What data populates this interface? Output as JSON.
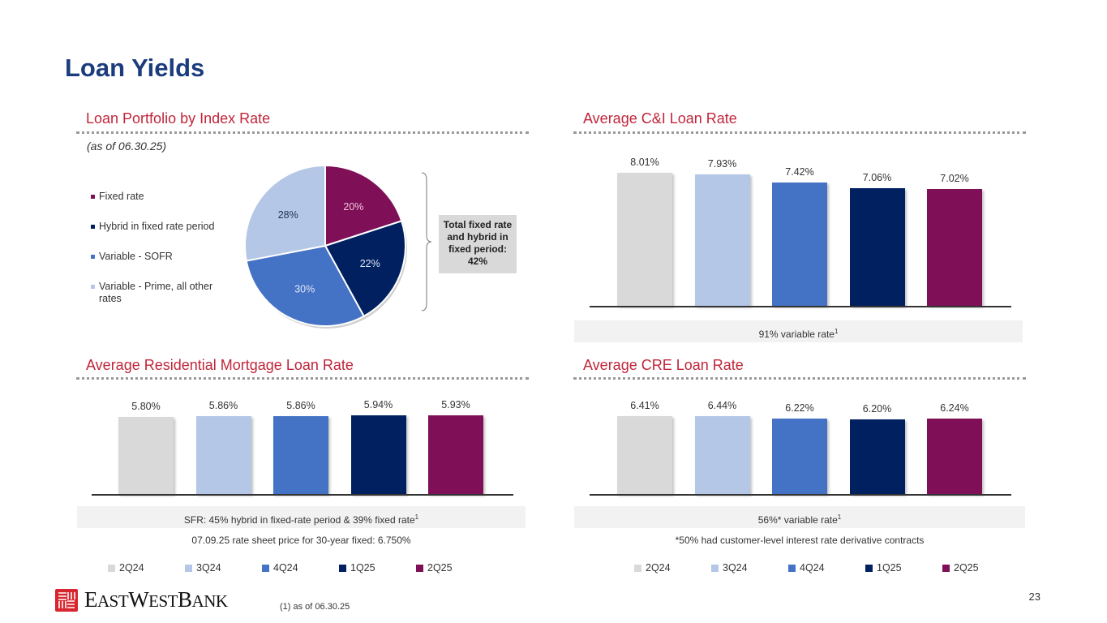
{
  "title": "Loan Yields",
  "page_number": "23",
  "footnote": "(1)   as of 06.30.25",
  "logo_text": "EASTWESTBANK",
  "colors": {
    "2Q24": "#D9D9D9",
    "3Q24": "#B4C7E7",
    "4Q24": "#4472C4",
    "1Q25": "#002060",
    "2Q25": "#7F1057"
  },
  "legend": [
    "2Q24",
    "3Q24",
    "4Q24",
    "1Q25",
    "2Q25"
  ],
  "chart_data": [
    {
      "id": "pie",
      "type": "pie",
      "title": "Loan Portfolio by Index Rate",
      "subtitle": "(as of 06.30.25)",
      "slices": [
        {
          "name": "Fixed rate",
          "value": 20,
          "label": "20%",
          "color": "#7F1057"
        },
        {
          "name": "Hybrid in fixed rate period",
          "value": 22,
          "label": "22%",
          "color": "#002060"
        },
        {
          "name": "Variable - SOFR",
          "value": 30,
          "label": "30%",
          "color": "#4472C4"
        },
        {
          "name": "Variable - Prime, all other rates",
          "value": 28,
          "label": "28%",
          "color": "#B4C7E7"
        }
      ],
      "legend_position": "left",
      "annotation": "Total fixed rate and hybrid in fixed period: 42%"
    },
    {
      "id": "ci",
      "type": "bar",
      "title": "Average C&I Loan Rate",
      "categories": [
        "2Q24",
        "3Q24",
        "4Q24",
        "1Q25",
        "2Q25"
      ],
      "values": [
        8.01,
        7.93,
        7.42,
        7.06,
        7.02
      ],
      "labels": [
        "8.01%",
        "7.93%",
        "7.42%",
        "7.06%",
        "7.02%"
      ],
      "ylim": [
        0,
        8.01
      ],
      "band": "91% variable rate",
      "band_sup": "1"
    },
    {
      "id": "resi",
      "type": "bar",
      "title": "Average Residential Mortgage Loan Rate",
      "categories": [
        "2Q24",
        "3Q24",
        "4Q24",
        "1Q25",
        "2Q25"
      ],
      "values": [
        5.8,
        5.86,
        5.86,
        5.94,
        5.93
      ],
      "labels": [
        "5.80%",
        "5.86%",
        "5.86%",
        "5.94%",
        "5.93%"
      ],
      "ylim": [
        0,
        5.94
      ],
      "band": "SFR: 45% hybrid in fixed-rate period & 39% fixed rate",
      "band_sup": "1",
      "note": "07.09.25 rate sheet price for 30-year fixed: 6.750%"
    },
    {
      "id": "cre",
      "type": "bar",
      "title": "Average CRE Loan Rate",
      "categories": [
        "2Q24",
        "3Q24",
        "4Q24",
        "1Q25",
        "2Q25"
      ],
      "values": [
        6.41,
        6.44,
        6.22,
        6.2,
        6.24
      ],
      "labels": [
        "6.41%",
        "6.44%",
        "6.22%",
        "6.20%",
        "6.24%"
      ],
      "ylim": [
        0,
        6.44
      ],
      "band": "56%* variable rate",
      "band_sup": "1",
      "note": "*50% had customer-level interest rate derivative contracts"
    }
  ]
}
